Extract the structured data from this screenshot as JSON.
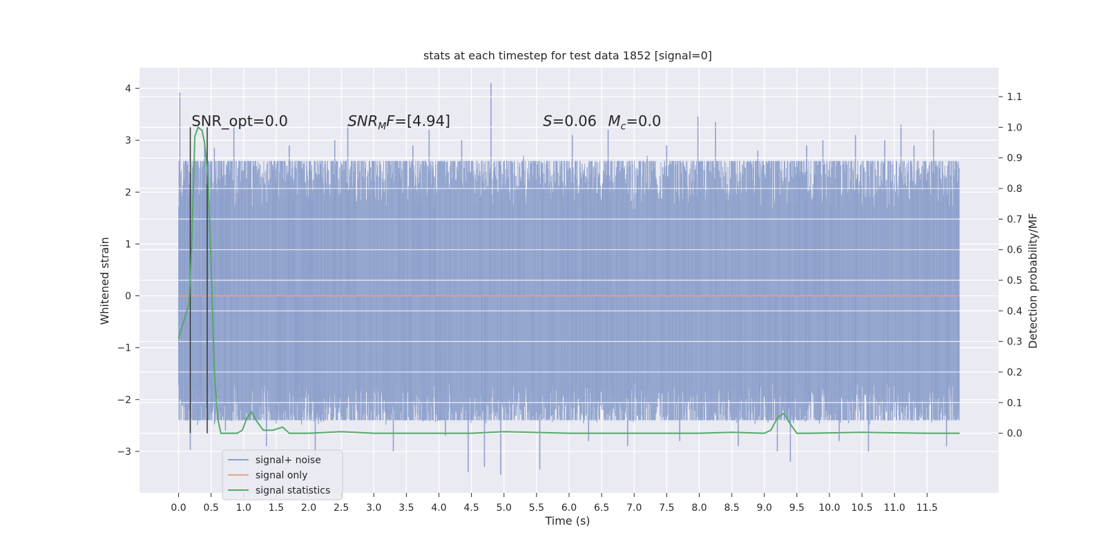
{
  "chart_data": {
    "type": "line",
    "title": "stats at each timestep for test data 1852 [signal=0]",
    "xlabel": "Time (s)",
    "ylabel": "Whitened strain",
    "y2label": "Detection probability/MF",
    "xlim": [
      -0.6,
      12.6
    ],
    "ylim": [
      -3.8,
      4.4
    ],
    "y2lim": [
      -0.195,
      1.195
    ],
    "grid": true,
    "legend_position": "lower-left",
    "xticks": [
      0.0,
      0.5,
      1.0,
      1.5,
      2.0,
      2.5,
      3.0,
      3.5,
      4.0,
      4.5,
      5.0,
      5.5,
      6.0,
      6.5,
      7.0,
      7.5,
      8.0,
      8.5,
      9.0,
      9.5,
      10.0,
      10.5,
      11.0,
      11.5
    ],
    "xtick_labels": [
      "0.0",
      "0.5",
      "1.0",
      "1.5",
      "2.0",
      "2.5",
      "3.0",
      "3.5",
      "4.0",
      "4.5",
      "5.0",
      "5.5",
      "6.0",
      "6.5",
      "7.0",
      "7.5",
      "8.0",
      "8.5",
      "9.0",
      "9.5",
      "10.0",
      "10.5",
      "11.0",
      "11.5"
    ],
    "yticks": [
      -3,
      -2,
      -1,
      0,
      1,
      2,
      3,
      4
    ],
    "ytick_labels": [
      "−3",
      "−2",
      "−1",
      "0",
      "1",
      "2",
      "3",
      "4"
    ],
    "y2ticks": [
      0.0,
      0.1,
      0.2,
      0.3,
      0.4,
      0.5,
      0.6,
      0.7,
      0.8,
      0.9,
      1.0,
      1.1
    ],
    "y2tick_labels": [
      "0.0",
      "0.1",
      "0.2",
      "0.3",
      "0.4",
      "0.5",
      "0.6",
      "0.7",
      "0.8",
      "0.9",
      "1.0",
      "1.1"
    ],
    "annotations": [
      {
        "text": "SNR_opt=0.0",
        "x": 0.2
      },
      {
        "text": "SNR",
        "sub": "M",
        "after": "F=[4.94]",
        "x": 2.6,
        "italic": true
      },
      {
        "text": "S=0.06",
        "x": 5.6,
        "italic_prefix": "S"
      },
      {
        "text": "M",
        "sub": "c",
        "after": "=0.0",
        "x": 6.6,
        "italic": true
      }
    ],
    "vertical_markers": [
      0.18,
      0.44
    ],
    "series": [
      {
        "name": "signal+ noise",
        "color": "#8da0cb",
        "axis": "left",
        "x_range": [
          0.0,
          12.0
        ],
        "envelope_core": [
          -1.5,
          1.5
        ],
        "spikes": [
          [
            0.02,
            3.92
          ],
          [
            0.05,
            -2.1
          ],
          [
            0.18,
            -2.97
          ],
          [
            0.4,
            3.0
          ],
          [
            0.55,
            2.85
          ],
          [
            0.72,
            -2.6
          ],
          [
            0.85,
            3.3
          ],
          [
            1.1,
            2.5
          ],
          [
            1.35,
            -2.9
          ],
          [
            1.7,
            2.9
          ],
          [
            2.1,
            -3.1
          ],
          [
            2.4,
            3.0
          ],
          [
            2.6,
            3.3
          ],
          [
            3.0,
            2.6
          ],
          [
            3.3,
            -3.0
          ],
          [
            3.6,
            2.9
          ],
          [
            3.85,
            3.2
          ],
          [
            4.1,
            -2.7
          ],
          [
            4.35,
            3.0
          ],
          [
            4.45,
            -3.4
          ],
          [
            4.7,
            -3.3
          ],
          [
            4.8,
            4.1
          ],
          [
            4.95,
            -3.45
          ],
          [
            5.3,
            2.7
          ],
          [
            5.55,
            -3.35
          ],
          [
            5.8,
            2.6
          ],
          [
            6.05,
            3.1
          ],
          [
            6.3,
            -2.8
          ],
          [
            6.6,
            3.2
          ],
          [
            6.9,
            -2.9
          ],
          [
            7.2,
            2.7
          ],
          [
            7.5,
            2.9
          ],
          [
            7.7,
            -2.8
          ],
          [
            7.98,
            3.45
          ],
          [
            8.25,
            3.35
          ],
          [
            8.6,
            -2.9
          ],
          [
            8.9,
            2.8
          ],
          [
            9.2,
            -3.0
          ],
          [
            9.4,
            -3.2
          ],
          [
            9.65,
            2.9
          ],
          [
            9.9,
            3.0
          ],
          [
            10.15,
            -2.8
          ],
          [
            10.4,
            3.1
          ],
          [
            10.6,
            -3.0
          ],
          [
            10.85,
            3.0
          ],
          [
            11.1,
            3.3
          ],
          [
            11.3,
            2.9
          ],
          [
            11.6,
            3.2
          ],
          [
            11.8,
            -2.9
          ],
          [
            11.95,
            2.2
          ]
        ]
      },
      {
        "name": "signal only",
        "color": "#e0a58c",
        "axis": "left",
        "x": [
          0.0,
          12.0
        ],
        "y": [
          0.0,
          0.0
        ]
      },
      {
        "name": "signal statistics",
        "color": "#55a868",
        "axis": "right",
        "x": [
          0.0,
          0.1,
          0.16,
          0.2,
          0.25,
          0.3,
          0.36,
          0.4,
          0.45,
          0.5,
          0.55,
          0.6,
          0.65,
          0.72,
          0.8,
          0.9,
          0.98,
          1.05,
          1.12,
          1.2,
          1.3,
          1.45,
          1.6,
          1.7,
          1.85,
          2.0,
          2.5,
          3.0,
          4.0,
          4.5,
          5.0,
          6.0,
          7.0,
          8.0,
          8.5,
          9.0,
          9.1,
          9.2,
          9.3,
          9.4,
          9.5,
          9.6,
          9.7,
          10.5,
          11.5,
          12.0
        ],
        "y": [
          0.31,
          0.38,
          0.42,
          0.6,
          0.97,
          1.0,
          0.99,
          0.95,
          0.84,
          0.55,
          0.2,
          0.05,
          0.0,
          0.0,
          0.0,
          0.0,
          0.01,
          0.05,
          0.07,
          0.04,
          0.01,
          0.01,
          0.02,
          0.0,
          0.0,
          0.0,
          0.005,
          0.0,
          0.0,
          0.0,
          0.005,
          0.0,
          0.0,
          0.0,
          0.003,
          0.0,
          0.01,
          0.05,
          0.065,
          0.03,
          0.0,
          0.0,
          0.0,
          0.003,
          0.0,
          0.0
        ]
      }
    ]
  }
}
